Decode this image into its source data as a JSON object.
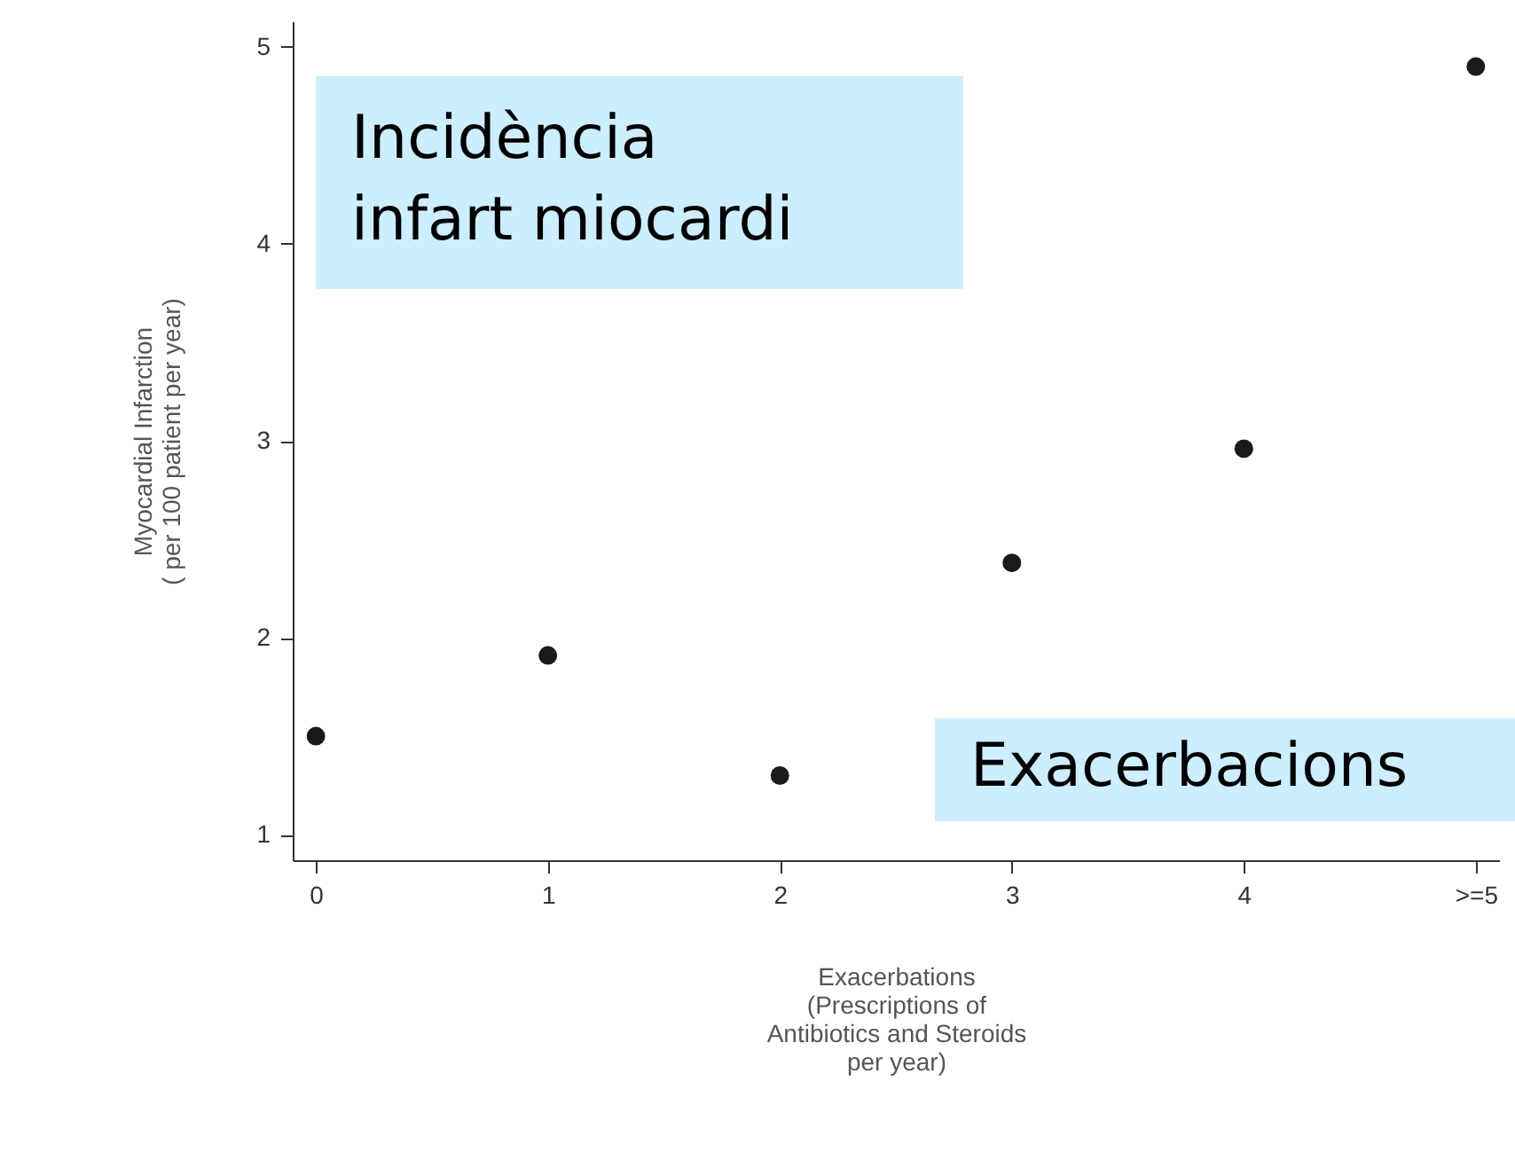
{
  "chart_data": {
    "type": "scatter",
    "xlabel": "Exacerbations\n(Prescriptions of\nAntibiotics and Steroids\nper year)",
    "ylabel": "Myocardial Infarction\n( per 100 patient per year)",
    "categories": [
      "0",
      "1",
      "2",
      "3",
      "4",
      ">=5"
    ],
    "values": [
      1.5,
      1.91,
      1.3,
      2.38,
      2.96,
      4.9
    ],
    "color": "#1a1a1a",
    "ylim": [
      0.87,
      5.13
    ],
    "yticks": [
      1,
      2,
      3,
      4,
      5
    ],
    "marker": "circle",
    "grid": false,
    "annotations": [
      "Incidència\ninfart miocardi",
      "Exacerbacions"
    ]
  }
}
